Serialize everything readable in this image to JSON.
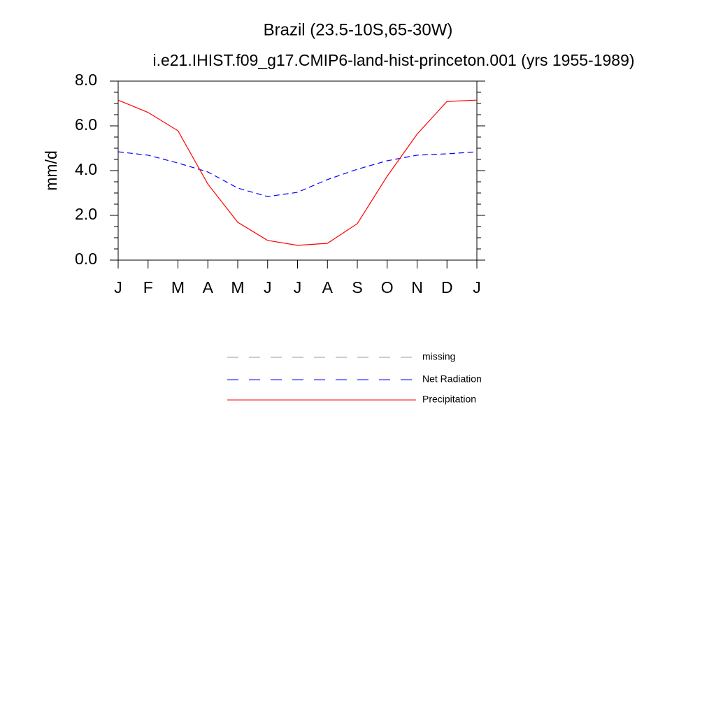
{
  "chart_data": {
    "type": "line",
    "title": "Brazil (23.5-10S,65-30W)",
    "subtitle": "i.e21.IHIST.f09_g17.CMIP6-land-hist-princeton.001 (yrs 1955-1989)",
    "y_label": "mm/d",
    "categories": [
      "J",
      "F",
      "M",
      "A",
      "M",
      "J",
      "J",
      "A",
      "S",
      "O",
      "N",
      "D",
      "J"
    ],
    "series": [
      {
        "name": "missing",
        "color": "#999999",
        "dash": true,
        "values": [
          null,
          null,
          null,
          null,
          null,
          null,
          null,
          null,
          null,
          null,
          null,
          null,
          null
        ]
      },
      {
        "name": "Net Radiation",
        "color": "#0000ff",
        "dash": true,
        "values": [
          4.84,
          4.69,
          4.34,
          3.94,
          3.22,
          2.84,
          3.03,
          3.6,
          4.06,
          4.44,
          4.69,
          4.75,
          4.84
        ]
      },
      {
        "name": "Precipitation",
        "color": "#ff0000",
        "dash": false,
        "values": [
          7.15,
          6.6,
          5.78,
          3.4,
          1.69,
          0.88,
          0.66,
          0.75,
          1.63,
          3.75,
          5.63,
          7.09,
          7.15
        ]
      }
    ],
    "ylim": [
      0,
      8
    ],
    "yticks": [
      {
        "value": 0,
        "label": "0.0"
      },
      {
        "value": 2,
        "label": "2.0"
      },
      {
        "value": 4,
        "label": "4.0"
      },
      {
        "value": 6,
        "label": "6.0"
      },
      {
        "value": 8,
        "label": "8.0"
      }
    ],
    "yminorticks": [
      0.5,
      1,
      1.5,
      2.5,
      3,
      3.5,
      4.5,
      5,
      5.5,
      6.5,
      7,
      7.5
    ],
    "grid": false
  }
}
